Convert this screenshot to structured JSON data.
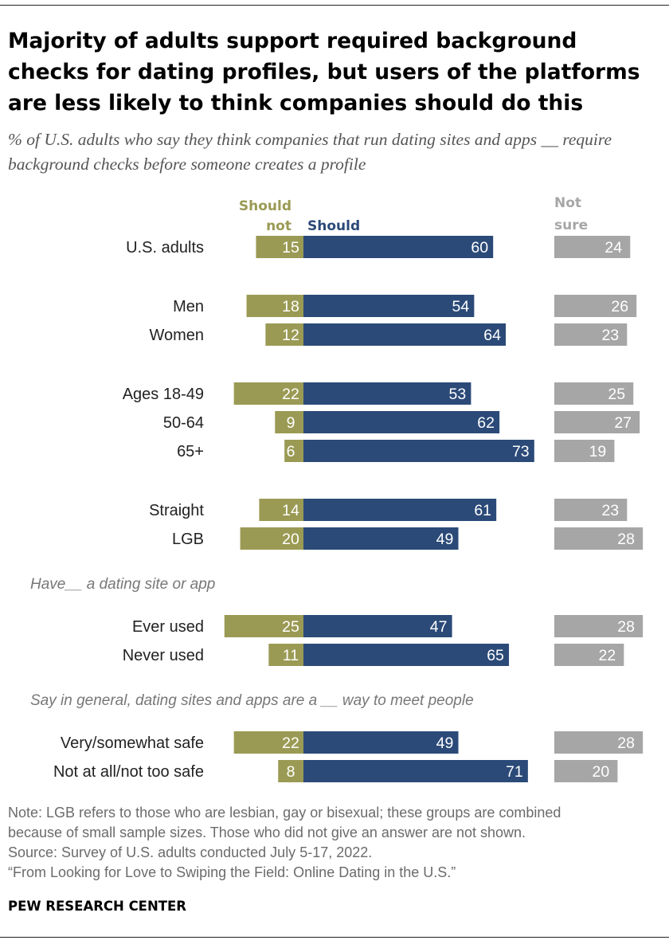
{
  "title": "Majority of adults support required background checks for dating profiles, but users of the platforms are less likely to think companies should do this",
  "subtitle": "% of U.S. adults who say they think companies that run dating sites and apps __ require background checks before someone creates a profile",
  "colors": {
    "should_not": "#9a9a54",
    "should": "#2b4a78",
    "not_sure": "#a6a6a6"
  },
  "chart_data": {
    "type": "bar",
    "orientation": "horizontal-diverging",
    "series_labels": {
      "should_not": "Should not",
      "should": "Should",
      "not_sure": "Not sure"
    },
    "rows": [
      {
        "label": "U.S. adults",
        "should_not": 15,
        "should": 60,
        "not_sure": 24
      },
      {
        "label": "Men",
        "should_not": 18,
        "should": 54,
        "not_sure": 26
      },
      {
        "label": "Women",
        "should_not": 12,
        "should": 64,
        "not_sure": 23
      },
      {
        "label": "Ages 18-49",
        "should_not": 22,
        "should": 53,
        "not_sure": 25
      },
      {
        "label": "50-64",
        "should_not": 9,
        "should": 62,
        "not_sure": 27
      },
      {
        "label": "65+",
        "should_not": 6,
        "should": 73,
        "not_sure": 19
      },
      {
        "label": "Straight",
        "should_not": 14,
        "should": 61,
        "not_sure": 23
      },
      {
        "label": "LGB",
        "should_not": 20,
        "should": 49,
        "not_sure": 28
      },
      {
        "label": "Ever used",
        "should_not": 25,
        "should": 47,
        "not_sure": 28
      },
      {
        "label": "Never used",
        "should_not": 11,
        "should": 65,
        "not_sure": 22
      },
      {
        "label": "Very/somewhat safe",
        "should_not": 22,
        "should": 49,
        "not_sure": 28
      },
      {
        "label": "Not at all/not too safe",
        "should_not": 8,
        "should": 71,
        "not_sure": 20
      }
    ],
    "group_labels": [
      {
        "before_row": 8,
        "text": "Have__ a dating site or app"
      },
      {
        "before_row": 10,
        "text": "Say in general, dating sites and apps are a __ way to meet people"
      }
    ]
  },
  "notes": [
    "Note: LGB refers to those who are lesbian, gay or bisexual; these groups are combined",
    "because of small sample sizes. Those who did not give an answer are not shown.",
    "Source: Survey of U.S. adults conducted July 5-17, 2022.",
    "“From Looking for Love to Swiping the Field: Online Dating in the U.S.”"
  ],
  "source_org": "PEW RESEARCH CENTER"
}
